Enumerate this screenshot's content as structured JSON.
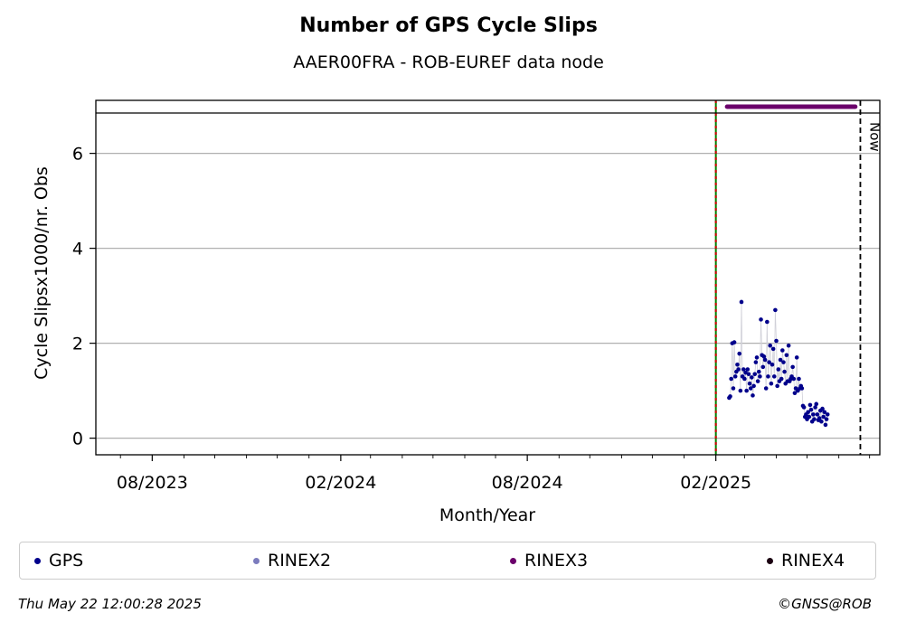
{
  "title": "Number of GPS Cycle Slips",
  "subtitle": "AAER00FRA - ROB-EUREF data node",
  "footer": {
    "timestamp": "Thu May 22 12:00:28 2025",
    "copyright": "©GNSS@ROB"
  },
  "legend": [
    {
      "label": "GPS",
      "color": "#00008b"
    },
    {
      "label": "RINEX2",
      "color": "#7b7bbd"
    },
    {
      "label": "RINEX3",
      "color": "#6b006b"
    },
    {
      "label": "RINEX4",
      "color": "#1a0010"
    }
  ],
  "chart_data": {
    "type": "scatter",
    "xlabel": "Month/Year",
    "ylabel": "Cycle Slipsx1000/nr. Obs",
    "x_ticks": [
      "08/2023",
      "02/2024",
      "08/2024",
      "02/2025"
    ],
    "y_ticks": [
      0,
      2,
      4,
      6
    ],
    "ylim": [
      -0.35,
      6.85
    ],
    "xlim": [
      "2023-06-07",
      "2025-07-11"
    ],
    "grid": "horizontal",
    "legend_position": "bottom",
    "vertical_lines": [
      {
        "date": "2025-02-01",
        "style": "green-red-dashed"
      },
      {
        "date": "2025-06-22",
        "style": "black-dashed",
        "label": "Now"
      }
    ],
    "rinex3_availability": {
      "start": "2025-02-12",
      "end": "2025-06-17",
      "color": "#6b006b"
    },
    "series": [
      {
        "name": "GPS",
        "color": "#00008b",
        "x": [
          "2025-02-14",
          "2025-02-15",
          "2025-02-16",
          "2025-02-17",
          "2025-02-18",
          "2025-02-19",
          "2025-02-20",
          "2025-02-21",
          "2025-02-22",
          "2025-02-23",
          "2025-02-24",
          "2025-02-25",
          "2025-02-26",
          "2025-02-27",
          "2025-02-28",
          "2025-03-01",
          "2025-03-02",
          "2025-03-03",
          "2025-03-04",
          "2025-03-05",
          "2025-03-06",
          "2025-03-07",
          "2025-03-08",
          "2025-03-09",
          "2025-03-10",
          "2025-03-11",
          "2025-03-12",
          "2025-03-13",
          "2025-03-14",
          "2025-03-15",
          "2025-03-16",
          "2025-03-17",
          "2025-03-18",
          "2025-03-19",
          "2025-03-20",
          "2025-03-21",
          "2025-03-22",
          "2025-03-23",
          "2025-03-24",
          "2025-03-25",
          "2025-03-26",
          "2025-03-27",
          "2025-03-28",
          "2025-03-29",
          "2025-03-30",
          "2025-03-31",
          "2025-04-01",
          "2025-04-02",
          "2025-04-03",
          "2025-04-04",
          "2025-04-05",
          "2025-04-06",
          "2025-04-07",
          "2025-04-08",
          "2025-04-09",
          "2025-04-10",
          "2025-04-11",
          "2025-04-12",
          "2025-04-13",
          "2025-04-14",
          "2025-04-15",
          "2025-04-16",
          "2025-04-17",
          "2025-04-18",
          "2025-04-19",
          "2025-04-20",
          "2025-04-21",
          "2025-04-22",
          "2025-04-23",
          "2025-04-24",
          "2025-04-25",
          "2025-04-26",
          "2025-04-27",
          "2025-04-28",
          "2025-04-29",
          "2025-04-30",
          "2025-05-01",
          "2025-05-02",
          "2025-05-03",
          "2025-05-04",
          "2025-05-05",
          "2025-05-06",
          "2025-05-07",
          "2025-05-08",
          "2025-05-09",
          "2025-05-10",
          "2025-05-11",
          "2025-05-12",
          "2025-05-13",
          "2025-05-14",
          "2025-05-15",
          "2025-05-16",
          "2025-05-17",
          "2025-05-18",
          "2025-05-19",
          "2025-05-20",
          "2025-05-21"
        ],
        "y": [
          0.85,
          0.88,
          1.25,
          2.0,
          1.05,
          2.02,
          1.3,
          1.4,
          1.55,
          1.45,
          1.78,
          1.0,
          2.87,
          1.3,
          1.45,
          1.25,
          1.38,
          1.0,
          1.45,
          1.35,
          1.15,
          1.05,
          1.28,
          0.9,
          1.1,
          1.35,
          1.6,
          1.7,
          1.2,
          1.4,
          1.3,
          2.5,
          1.75,
          1.5,
          1.72,
          1.65,
          1.05,
          2.45,
          1.3,
          1.6,
          1.95,
          1.15,
          1.55,
          1.88,
          1.3,
          2.7,
          2.05,
          1.1,
          1.45,
          1.2,
          1.65,
          1.25,
          1.85,
          1.6,
          1.4,
          1.15,
          1.75,
          1.2,
          1.95,
          1.2,
          1.25,
          1.3,
          1.5,
          1.25,
          0.95,
          1.05,
          1.7,
          1.0,
          1.25,
          1.05,
          1.1,
          1.05,
          0.68,
          0.65,
          0.45,
          0.5,
          0.4,
          0.55,
          0.45,
          0.7,
          0.6,
          0.35,
          0.5,
          0.4,
          0.65,
          0.72,
          0.5,
          0.38,
          0.42,
          0.58,
          0.35,
          0.62,
          0.45,
          0.55,
          0.28,
          0.4,
          0.5
        ]
      }
    ]
  }
}
